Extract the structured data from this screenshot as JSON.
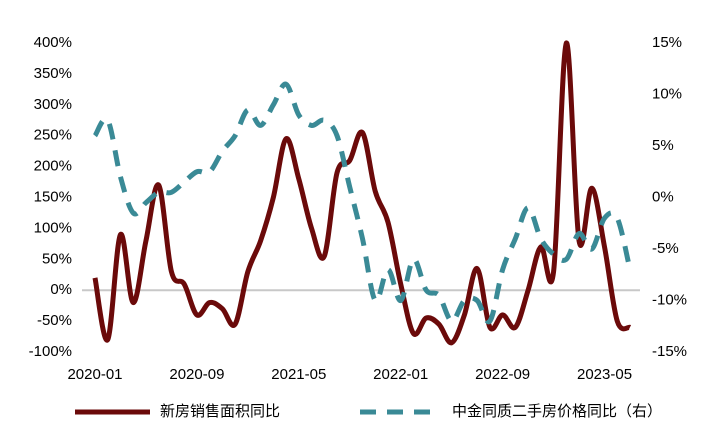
{
  "chart_data": {
    "type": "line",
    "categories": [
      "2020-01",
      null,
      null,
      null,
      null,
      null,
      null,
      null,
      "2020-09",
      null,
      null,
      null,
      null,
      null,
      null,
      null,
      "2021-05",
      null,
      null,
      null,
      null,
      null,
      null,
      null,
      "2022-01",
      null,
      null,
      null,
      null,
      null,
      null,
      null,
      "2022-09",
      null,
      null,
      null,
      null,
      null,
      null,
      null,
      "2023-05",
      null,
      null
    ],
    "series": [
      {
        "name": "新房销售面积同比",
        "color": "#6b0a0a",
        "axis": "y",
        "values": [
          20,
          -80,
          90,
          -20,
          80,
          170,
          30,
          10,
          -40,
          -20,
          -30,
          -55,
          30,
          80,
          150,
          245,
          180,
          100,
          55,
          190,
          210,
          255,
          160,
          110,
          10,
          -70,
          -45,
          -55,
          -85,
          -40,
          35,
          -60,
          -40,
          -60,
          0,
          70,
          30,
          400,
          80,
          165,
          70,
          -50,
          -60
        ]
      },
      {
        "name": "中金同质二手房价格同比（右）",
        "color": "#3a8a96",
        "axis": "y2",
        "values": [
          6,
          7.5,
          2,
          -1.5,
          -0.5,
          0.5,
          0.5,
          1.5,
          2.5,
          2.5,
          4.5,
          6,
          8.5,
          7,
          9,
          11,
          8,
          7,
          7.5,
          6,
          1,
          -4,
          -10,
          -7,
          -10,
          -6,
          -9,
          -9.5,
          -12,
          -10,
          -10,
          -12,
          -7,
          -4,
          -1,
          -4,
          -5.5,
          -6,
          -3.5,
          -5,
          -2,
          -2,
          -7
        ]
      }
    ],
    "ylim": [
      -100,
      400
    ],
    "yticks": [
      {
        "value": -100,
        "label": "-100%"
      },
      {
        "value": -50,
        "label": "-50%"
      },
      {
        "value": 0,
        "label": "0%"
      },
      {
        "value": 50,
        "label": "50%"
      },
      {
        "value": 100,
        "label": "100%"
      },
      {
        "value": 150,
        "label": "150%"
      },
      {
        "value": 200,
        "label": "200%"
      },
      {
        "value": 250,
        "label": "250%"
      },
      {
        "value": 300,
        "label": "300%"
      },
      {
        "value": 350,
        "label": "350%"
      },
      {
        "value": 400,
        "label": "400%"
      }
    ],
    "y2lim": [
      -15,
      15
    ],
    "y2ticks": [
      {
        "value": -15,
        "label": "-15%"
      },
      {
        "value": -10,
        "label": "-10%"
      },
      {
        "value": -5,
        "label": "-5%"
      },
      {
        "value": 0,
        "label": "0%"
      },
      {
        "value": 5,
        "label": "5%"
      },
      {
        "value": 10,
        "label": "10%"
      },
      {
        "value": 15,
        "label": "15%"
      }
    ],
    "legend": "bottom"
  }
}
